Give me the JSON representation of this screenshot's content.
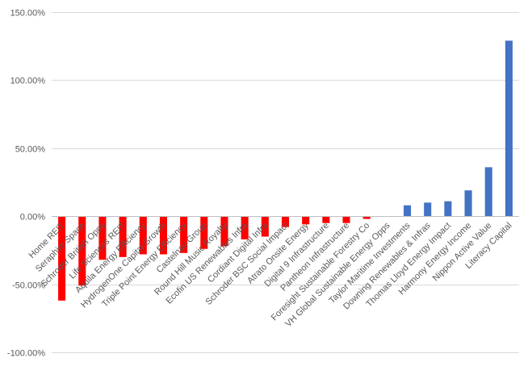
{
  "chart_data": {
    "type": "bar",
    "title": "",
    "xlabel": "",
    "ylabel": "",
    "ylim": [
      -100,
      150
    ],
    "yticks": [
      -100,
      -50,
      0,
      50,
      100,
      150
    ],
    "ytick_labels": [
      "-100.00%",
      "-50.00%",
      "0.00%",
      "50.00%",
      "100.00%",
      "150.00%"
    ],
    "grid": true,
    "legend": "none",
    "negative_color": "#ff0000",
    "positive_color": "#4472c4",
    "categories": [
      "Home REIT",
      "Seraphim Space",
      "Schroder British Opps",
      "Life Sciences REIT",
      "Aquila Energy Efficiency",
      "HydrogenOne Capital Growth",
      "Triple Point Energy Efficiency",
      "Castelnau Group",
      "Round Hill Music Royalty",
      "Ecofin US Renewables Infra",
      "Cordiant Digital Infra",
      "Schroder BSC Social Impact",
      "Atrato Onsite Energy",
      "Digital 9 Infrastructure",
      "Pantheon Infrastructure",
      "Foresight Sustainable Forestry Co",
      "VH Global Sustainable Energy Opps",
      "Taylor Maritime Investments",
      "Downing Renewables & Infras",
      "Thomas Lloyd Energy Impact",
      "Harmony Energy Income",
      "Nippon Active Value",
      "Literacy Capital"
    ],
    "values": [
      -62,
      -51,
      -32,
      -30,
      -28,
      -28,
      -27,
      -24,
      -22,
      -17,
      -15,
      -8,
      -6,
      -5,
      -5,
      -2,
      0,
      8,
      10,
      11,
      19,
      36,
      129
    ]
  }
}
